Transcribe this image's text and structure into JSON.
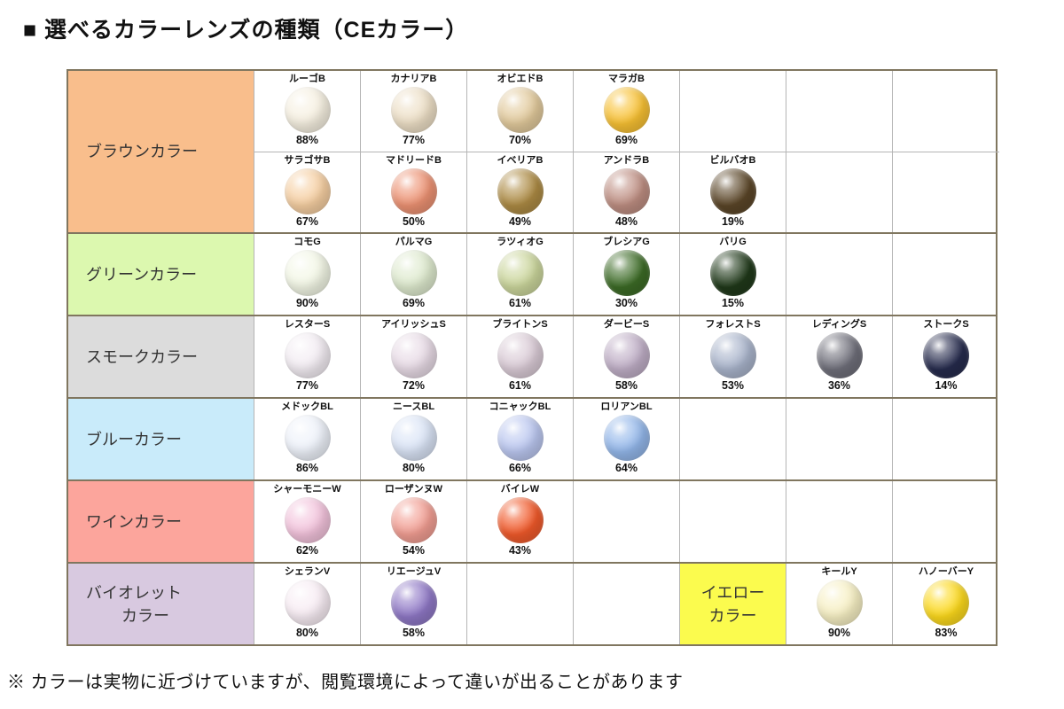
{
  "page": {
    "title": "■ 選べるカラーレンズの種類（CEカラー）",
    "footnote": "※ カラーは実物に近づけていますが、閲覧環境によって違いが出ることがあります"
  },
  "chart_data": {
    "type": "table",
    "title": "選べるカラーレンズの種類（CEカラー）",
    "sections": [
      {
        "label_lines": [
          "ブラウンカラー"
        ],
        "bg": "#F9BE8C",
        "rows": [
          [
            {
              "type": "lens",
              "name": "ルーゴB",
              "percent": "88%",
              "color": "#F6F0E1"
            },
            {
              "type": "lens",
              "name": "カナリアB",
              "percent": "77%",
              "color": "#EDDFC6"
            },
            {
              "type": "lens",
              "name": "オビエドB",
              "percent": "70%",
              "color": "#E2CA9C"
            },
            {
              "type": "lens",
              "name": "マラガB",
              "percent": "69%",
              "color": "#F8C133"
            },
            {
              "type": "empty"
            },
            {
              "type": "empty"
            },
            {
              "type": "empty"
            }
          ],
          [
            {
              "type": "lens",
              "name": "サラゴサB",
              "percent": "67%",
              "color": "#F6CFA2"
            },
            {
              "type": "lens",
              "name": "マドリードB",
              "percent": "50%",
              "color": "#ED9273"
            },
            {
              "type": "lens",
              "name": "イベリアB",
              "percent": "49%",
              "color": "#AD8B44"
            },
            {
              "type": "lens",
              "name": "アンドラB",
              "percent": "48%",
              "color": "#BE8E82"
            },
            {
              "type": "lens",
              "name": "ビルバオB",
              "percent": "19%",
              "color": "#5B4628"
            },
            {
              "type": "empty"
            },
            {
              "type": "empty"
            }
          ]
        ]
      },
      {
        "label_lines": [
          "グリーンカラー"
        ],
        "bg": "#DCF8AF",
        "rows": [
          [
            {
              "type": "lens",
              "name": "コモG",
              "percent": "90%",
              "color": "#F3F7E6"
            },
            {
              "type": "lens",
              "name": "パルマG",
              "percent": "69%",
              "color": "#DEEACE"
            },
            {
              "type": "lens",
              "name": "ラツィオG",
              "percent": "61%",
              "color": "#CBD69C"
            },
            {
              "type": "lens",
              "name": "ブレシアG",
              "percent": "30%",
              "color": "#3C6B26"
            },
            {
              "type": "lens",
              "name": "バリG",
              "percent": "15%",
              "color": "#20391A"
            },
            {
              "type": "empty"
            },
            {
              "type": "empty"
            }
          ]
        ]
      },
      {
        "label_lines": [
          "スモークカラー"
        ],
        "bg": "#DCDCDC",
        "rows": [
          [
            {
              "type": "lens",
              "name": "レスターS",
              "percent": "77%",
              "color": "#F3EDF3"
            },
            {
              "type": "lens",
              "name": "アイリッシュS",
              "percent": "72%",
              "color": "#E8DBE6"
            },
            {
              "type": "lens",
              "name": "ブライトンS",
              "percent": "61%",
              "color": "#DACBD6"
            },
            {
              "type": "lens",
              "name": "ダービーS",
              "percent": "58%",
              "color": "#BFAEC6"
            },
            {
              "type": "lens",
              "name": "フォレストS",
              "percent": "53%",
              "color": "#A9B4CB"
            },
            {
              "type": "lens",
              "name": "レディングS",
              "percent": "36%",
              "color": "#6F6F7A"
            },
            {
              "type": "lens",
              "name": "ストークS",
              "percent": "14%",
              "color": "#262B4D"
            }
          ]
        ]
      },
      {
        "label_lines": [
          "ブルーカラー"
        ],
        "bg": "#C9EBFA",
        "rows": [
          [
            {
              "type": "lens",
              "name": "メドックBL",
              "percent": "86%",
              "color": "#EEF2FA"
            },
            {
              "type": "lens",
              "name": "ニースBL",
              "percent": "80%",
              "color": "#DAE4F6"
            },
            {
              "type": "lens",
              "name": "コニャックBL",
              "percent": "66%",
              "color": "#BBC7F0"
            },
            {
              "type": "lens",
              "name": "ロリアンBL",
              "percent": "64%",
              "color": "#93B7EA"
            },
            {
              "type": "empty"
            },
            {
              "type": "empty"
            },
            {
              "type": "empty"
            }
          ]
        ]
      },
      {
        "label_lines": [
          "ワインカラー"
        ],
        "bg": "#FCA59C",
        "rows": [
          [
            {
              "type": "lens",
              "name": "シャーモニーW",
              "percent": "62%",
              "color": "#F3C3DC"
            },
            {
              "type": "lens",
              "name": "ローザンヌW",
              "percent": "54%",
              "color": "#F29E93"
            },
            {
              "type": "lens",
              "name": "バイレW",
              "percent": "43%",
              "color": "#F15A2B"
            },
            {
              "type": "empty"
            },
            {
              "type": "empty"
            },
            {
              "type": "empty"
            },
            {
              "type": "empty"
            }
          ]
        ]
      },
      {
        "label_lines": [
          "バイオレット",
          "カラー"
        ],
        "bg": "#D8C9E0",
        "rows": [
          [
            {
              "type": "lens",
              "name": "シェランV",
              "percent": "80%",
              "color": "#F8EDF4"
            },
            {
              "type": "lens",
              "name": "リエージュV",
              "percent": "58%",
              "color": "#8F78C6"
            },
            {
              "type": "empty"
            },
            {
              "type": "empty"
            },
            {
              "type": "category",
              "label_lines": [
                "イエロー",
                "カラー"
              ],
              "bg": "#FBFB4E"
            },
            {
              "type": "lens",
              "name": "キールY",
              "percent": "90%",
              "color": "#F7F0C4"
            },
            {
              "type": "lens",
              "name": "ハノーバーY",
              "percent": "83%",
              "color": "#FCD91C"
            }
          ]
        ]
      }
    ]
  }
}
